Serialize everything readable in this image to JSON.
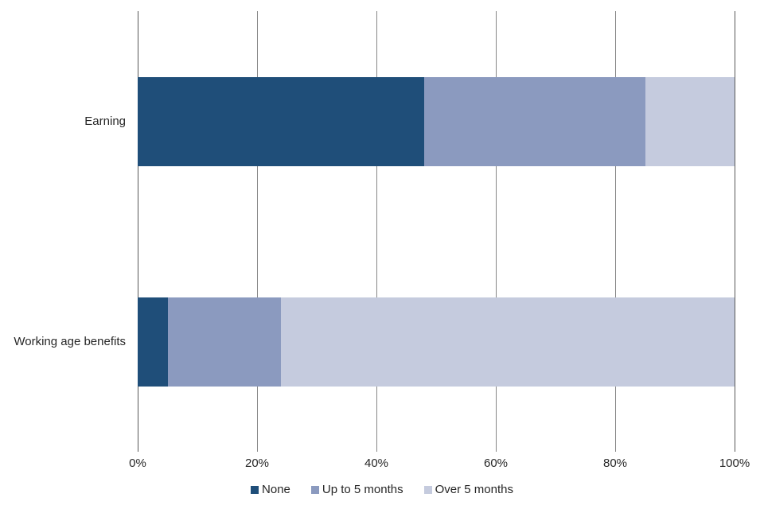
{
  "chart_data": {
    "type": "bar",
    "orientation": "horizontal",
    "stacked": true,
    "title": "",
    "xlabel": "",
    "ylabel": "",
    "categories": [
      "Earning",
      "Working age benefits"
    ],
    "series": [
      {
        "name": "None",
        "color": "#1F4E79",
        "values": [
          48,
          5
        ]
      },
      {
        "name": "Up to 5 months",
        "color": "#8B9ABF",
        "values": [
          37,
          19
        ]
      },
      {
        "name": "Over 5 months",
        "color": "#C5CBDE",
        "values": [
          15,
          76
        ]
      }
    ],
    "xlim": [
      0,
      100
    ],
    "x_tick_values": [
      0,
      20,
      40,
      60,
      80,
      100
    ],
    "x_tick_labels": [
      "0%",
      "20%",
      "40%",
      "60%",
      "80%",
      "100%"
    ],
    "grid": true,
    "legend_position": "bottom",
    "colors": {
      "gridline_inner": "#868686",
      "gridline_outer": "#595959",
      "text": "#262626",
      "background": "#ffffff"
    }
  }
}
